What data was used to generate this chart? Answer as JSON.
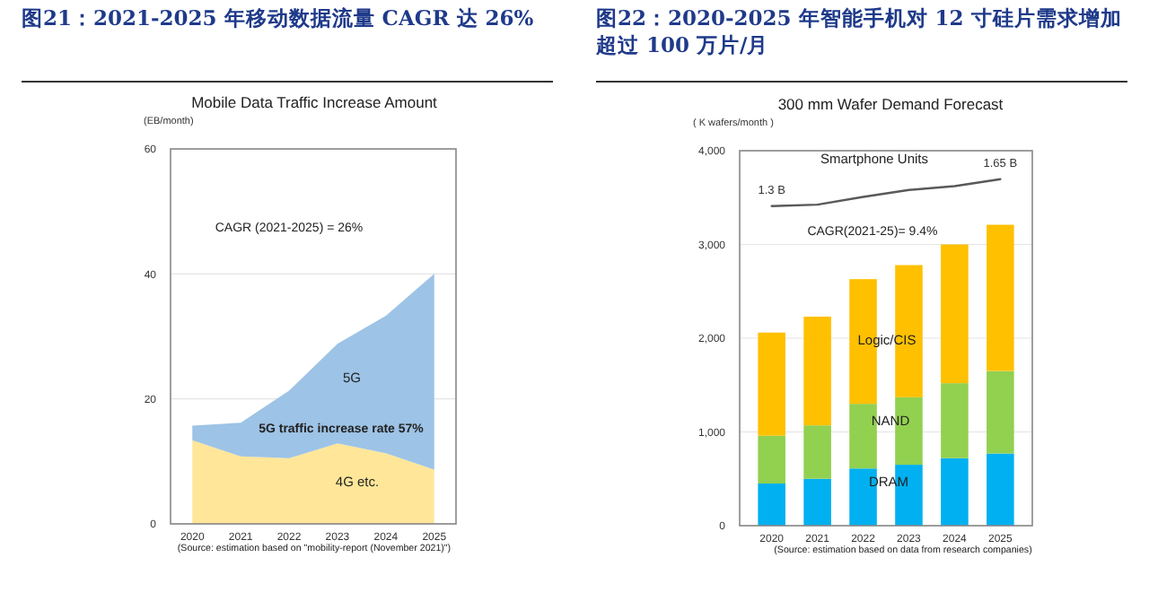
{
  "chart_data": [
    {
      "type": "area",
      "stacked": true,
      "title": "图21：2021-2025 年移动数据流量 CAGR 达 26%",
      "subtitle": "Mobile Data Traffic Increase Amount",
      "ylabel": "(EB/month)",
      "categories": [
        "2020",
        "2021",
        "2022",
        "2023",
        "2024",
        "2025"
      ],
      "series": [
        {
          "name": "4G etc.",
          "color": "#ffe699",
          "values": [
            13.4,
            10.8,
            10.5,
            12.9,
            11.3,
            8.7
          ]
        },
        {
          "name": "5G",
          "color": "#9dc3e6",
          "values": [
            2.3,
            5.4,
            10.8,
            15.9,
            22,
            31.3
          ]
        }
      ],
      "ylim": [
        0,
        60
      ],
      "yticks": [
        0,
        20,
        40,
        60
      ],
      "grid": "y",
      "annotations": [
        "CAGR (2021-2025) = 26%",
        "5G traffic increase rate  57%",
        "(Source: estimation based on \"mobility-report (November 2021)\")"
      ]
    },
    {
      "type": "bar",
      "stacked": true,
      "title": "图22：2020-2025 年智能手机对 12 寸硅片需求增加超过 100 万片/月",
      "subtitle": "300 mm Wafer Demand Forecast",
      "ylabel": "( K wafers/month )",
      "categories": [
        "2020",
        "2021",
        "2022",
        "2023",
        "2024",
        "2025"
      ],
      "series": [
        {
          "name": "DRAM",
          "color": "#00b0f0",
          "values": [
            450,
            500,
            610,
            650,
            720,
            770
          ]
        },
        {
          "name": "NAND",
          "color": "#92d050",
          "values": [
            510,
            570,
            690,
            720,
            800,
            880
          ]
        },
        {
          "name": "Logic/CIS",
          "color": "#ffc000",
          "values": [
            1100,
            1160,
            1330,
            1410,
            1480,
            1560
          ]
        },
        {
          "name": "Smartphone Units",
          "type": "line",
          "axis": "y2",
          "color": "#595959",
          "values": [
            1.3,
            1.32,
            1.42,
            1.51,
            1.56,
            1.65
          ],
          "value_labels": [
            "1.3 B",
            null,
            null,
            null,
            null,
            "1.65 B"
          ]
        }
      ],
      "ylim": [
        0,
        4000
      ],
      "yticks": [
        {
          "value": 0,
          "label": "0"
        },
        {
          "value": 1000,
          "label": "1,000"
        },
        {
          "value": 2000,
          "label": "2,000"
        },
        {
          "value": 3000,
          "label": "3,000"
        },
        {
          "value": 4000,
          "label": "4,000"
        }
      ],
      "y2lim": [
        -2.85,
        2.02
      ],
      "grid": "y",
      "annotations": [
        "CAGR(2021-25)= 9.4%",
        "(Source: estimation based on data from research companies)"
      ]
    }
  ]
}
